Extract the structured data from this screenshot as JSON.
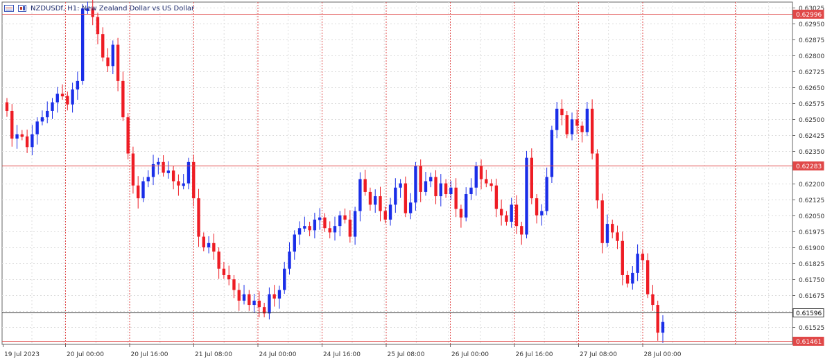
{
  "header": {
    "symbol_label": "NZDUSDf, H1:  New Zealand Dollar vs US Dollar"
  },
  "colors": {
    "bull": "#1a2ee8",
    "bear": "#ee1c24",
    "grid": "#dcdcdc",
    "session_line": "#e04848",
    "hline": "#e04848",
    "current_line": "#333333"
  },
  "chart_data": {
    "type": "candlestick",
    "symbol": "NZDUSDf",
    "timeframe": "H1",
    "ylim": [
      0.61445,
      0.6305
    ],
    "y_ticks": [
      "0.63025",
      "0.62950",
      "0.62875",
      "0.62800",
      "0.62725",
      "0.62650",
      "0.62575",
      "0.62500",
      "0.62425",
      "0.62350",
      "0.62275",
      "0.62200",
      "0.62125",
      "0.62050",
      "0.61975",
      "0.61900",
      "0.61825",
      "0.61750",
      "0.61675",
      "0.61600",
      "0.61525"
    ],
    "x_labels": [
      "19 Jul 2023",
      "20 Jul 00:00",
      "20 Jul 16:00",
      "21 Jul 08:00",
      "24 Jul 00:00",
      "24 Jul 16:00",
      "25 Jul 08:00",
      "26 Jul 00:00",
      "26 Jul 16:00",
      "27 Jul 08:00",
      "28 Jul 00:00"
    ],
    "price_lines": [
      {
        "label": "0.62996",
        "value": 0.62996,
        "kind": "level"
      },
      {
        "label": "0.62283",
        "value": 0.62283,
        "kind": "level"
      },
      {
        "label": "0.61596",
        "value": 0.61596,
        "kind": "current"
      },
      {
        "label": "0.61461",
        "value": 0.61461,
        "kind": "level"
      }
    ],
    "closes": [
      0.6254,
      0.6241,
      0.6243,
      0.6242,
      0.6237,
      0.6243,
      0.6249,
      0.6251,
      0.6254,
      0.6258,
      0.6262,
      0.6261,
      0.6257,
      0.6264,
      0.6268,
      0.6302,
      0.6302,
      0.6298,
      0.629,
      0.6279,
      0.6275,
      0.6285,
      0.6268,
      0.6251,
      0.6234,
      0.6219,
      0.6213,
      0.6221,
      0.6223,
      0.6229,
      0.623,
      0.6225,
      0.6226,
      0.6221,
      0.6219,
      0.622,
      0.623,
      0.6213,
      0.6195,
      0.619,
      0.6192,
      0.6188,
      0.618,
      0.6177,
      0.6175,
      0.617,
      0.6165,
      0.6168,
      0.6163,
      0.6165,
      0.6162,
      0.6159,
      0.6168,
      0.6166,
      0.617,
      0.618,
      0.6188,
      0.6196,
      0.6199,
      0.62,
      0.6198,
      0.6203,
      0.6204,
      0.6199,
      0.6197,
      0.62,
      0.6205,
      0.6203,
      0.6195,
      0.6207,
      0.6222,
      0.6216,
      0.621,
      0.6214,
      0.6207,
      0.6203,
      0.621,
      0.6218,
      0.622,
      0.6206,
      0.6211,
      0.6228,
      0.6216,
      0.6221,
      0.6223,
      0.6214,
      0.622,
      0.6215,
      0.6218,
      0.6208,
      0.6204,
      0.6215,
      0.6218,
      0.6228,
      0.6222,
      0.622,
      0.6219,
      0.6208,
      0.6205,
      0.6202,
      0.621,
      0.62,
      0.6196,
      0.6232,
      0.6213,
      0.6205,
      0.6207,
      0.6223,
      0.6245,
      0.6255,
      0.6252,
      0.6243,
      0.625,
      0.6247,
      0.6244,
      0.6255,
      0.6234,
      0.6212,
      0.6192,
      0.6201,
      0.6197,
      0.6193,
      0.6177,
      0.6173,
      0.6178,
      0.6187,
      0.6184,
      0.6168,
      0.6163,
      0.615,
      0.6155
    ]
  }
}
